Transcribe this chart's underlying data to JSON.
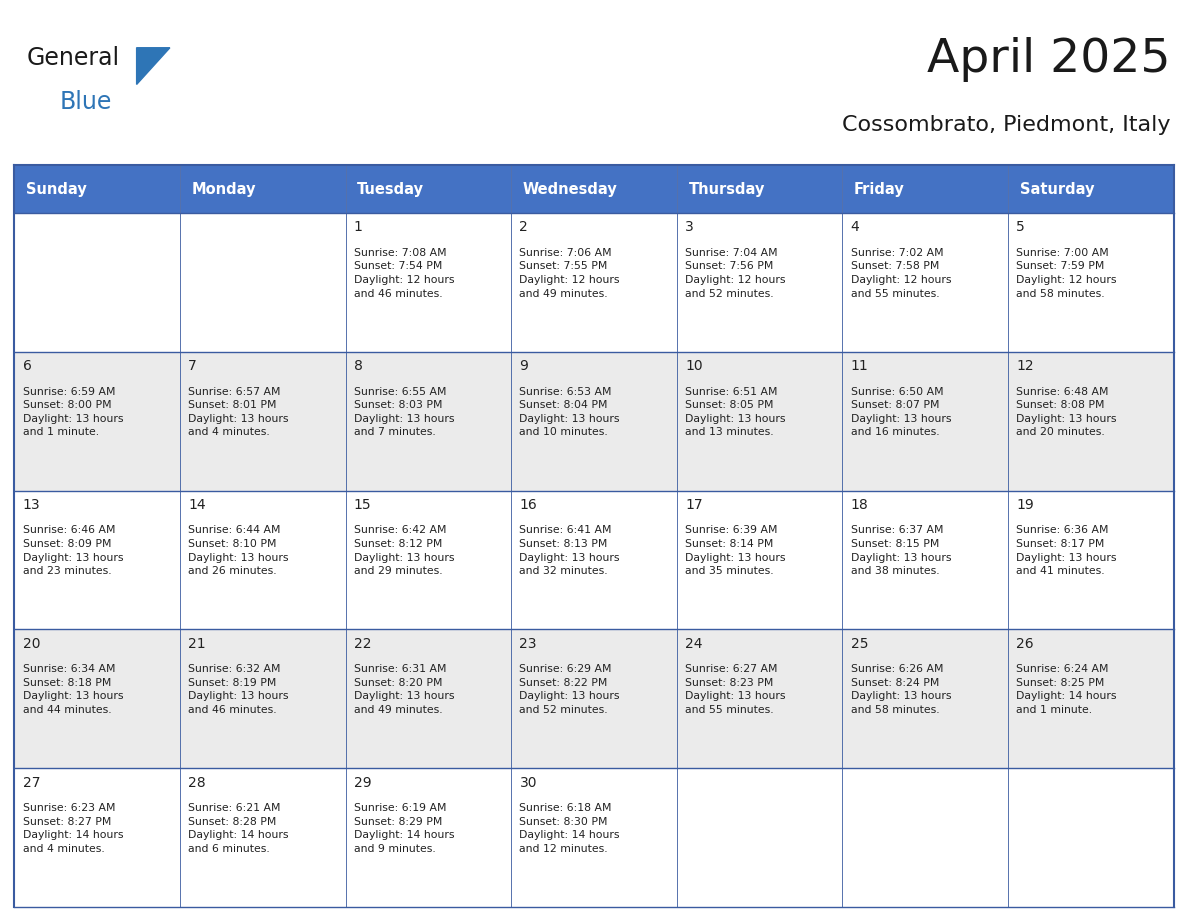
{
  "title": "April 2025",
  "subtitle": "Cossombrato, Piedmont, Italy",
  "header_bg": "#4472C4",
  "header_text_color": "#FFFFFF",
  "header_font_size": 10.5,
  "day_names": [
    "Sunday",
    "Monday",
    "Tuesday",
    "Wednesday",
    "Thursday",
    "Friday",
    "Saturday"
  ],
  "cell_bg_light": "#FFFFFF",
  "cell_bg_gray": "#EBEBEB",
  "grid_line_color": "#3A5BA0",
  "title_fontsize": 34,
  "subtitle_fontsize": 16,
  "cell_text_fontsize": 7.8,
  "day_num_fontsize": 10,
  "logo_general_color": "#1a1a1a",
  "logo_blue_color": "#2E75B6",
  "logo_triangle_color": "#2E75B6",
  "weeks": [
    {
      "bg": "#FFFFFF",
      "days": [
        {
          "day": null,
          "sunrise": null,
          "sunset": null,
          "daylight": null
        },
        {
          "day": null,
          "sunrise": null,
          "sunset": null,
          "daylight": null
        },
        {
          "day": 1,
          "sunrise": "7:08 AM",
          "sunset": "7:54 PM",
          "daylight": "12 hours\nand 46 minutes."
        },
        {
          "day": 2,
          "sunrise": "7:06 AM",
          "sunset": "7:55 PM",
          "daylight": "12 hours\nand 49 minutes."
        },
        {
          "day": 3,
          "sunrise": "7:04 AM",
          "sunset": "7:56 PM",
          "daylight": "12 hours\nand 52 minutes."
        },
        {
          "day": 4,
          "sunrise": "7:02 AM",
          "sunset": "7:58 PM",
          "daylight": "12 hours\nand 55 minutes."
        },
        {
          "day": 5,
          "sunrise": "7:00 AM",
          "sunset": "7:59 PM",
          "daylight": "12 hours\nand 58 minutes."
        }
      ]
    },
    {
      "bg": "#EBEBEB",
      "days": [
        {
          "day": 6,
          "sunrise": "6:59 AM",
          "sunset": "8:00 PM",
          "daylight": "13 hours\nand 1 minute."
        },
        {
          "day": 7,
          "sunrise": "6:57 AM",
          "sunset": "8:01 PM",
          "daylight": "13 hours\nand 4 minutes."
        },
        {
          "day": 8,
          "sunrise": "6:55 AM",
          "sunset": "8:03 PM",
          "daylight": "13 hours\nand 7 minutes."
        },
        {
          "day": 9,
          "sunrise": "6:53 AM",
          "sunset": "8:04 PM",
          "daylight": "13 hours\nand 10 minutes."
        },
        {
          "day": 10,
          "sunrise": "6:51 AM",
          "sunset": "8:05 PM",
          "daylight": "13 hours\nand 13 minutes."
        },
        {
          "day": 11,
          "sunrise": "6:50 AM",
          "sunset": "8:07 PM",
          "daylight": "13 hours\nand 16 minutes."
        },
        {
          "day": 12,
          "sunrise": "6:48 AM",
          "sunset": "8:08 PM",
          "daylight": "13 hours\nand 20 minutes."
        }
      ]
    },
    {
      "bg": "#FFFFFF",
      "days": [
        {
          "day": 13,
          "sunrise": "6:46 AM",
          "sunset": "8:09 PM",
          "daylight": "13 hours\nand 23 minutes."
        },
        {
          "day": 14,
          "sunrise": "6:44 AM",
          "sunset": "8:10 PM",
          "daylight": "13 hours\nand 26 minutes."
        },
        {
          "day": 15,
          "sunrise": "6:42 AM",
          "sunset": "8:12 PM",
          "daylight": "13 hours\nand 29 minutes."
        },
        {
          "day": 16,
          "sunrise": "6:41 AM",
          "sunset": "8:13 PM",
          "daylight": "13 hours\nand 32 minutes."
        },
        {
          "day": 17,
          "sunrise": "6:39 AM",
          "sunset": "8:14 PM",
          "daylight": "13 hours\nand 35 minutes."
        },
        {
          "day": 18,
          "sunrise": "6:37 AM",
          "sunset": "8:15 PM",
          "daylight": "13 hours\nand 38 minutes."
        },
        {
          "day": 19,
          "sunrise": "6:36 AM",
          "sunset": "8:17 PM",
          "daylight": "13 hours\nand 41 minutes."
        }
      ]
    },
    {
      "bg": "#EBEBEB",
      "days": [
        {
          "day": 20,
          "sunrise": "6:34 AM",
          "sunset": "8:18 PM",
          "daylight": "13 hours\nand 44 minutes."
        },
        {
          "day": 21,
          "sunrise": "6:32 AM",
          "sunset": "8:19 PM",
          "daylight": "13 hours\nand 46 minutes."
        },
        {
          "day": 22,
          "sunrise": "6:31 AM",
          "sunset": "8:20 PM",
          "daylight": "13 hours\nand 49 minutes."
        },
        {
          "day": 23,
          "sunrise": "6:29 AM",
          "sunset": "8:22 PM",
          "daylight": "13 hours\nand 52 minutes."
        },
        {
          "day": 24,
          "sunrise": "6:27 AM",
          "sunset": "8:23 PM",
          "daylight": "13 hours\nand 55 minutes."
        },
        {
          "day": 25,
          "sunrise": "6:26 AM",
          "sunset": "8:24 PM",
          "daylight": "13 hours\nand 58 minutes."
        },
        {
          "day": 26,
          "sunrise": "6:24 AM",
          "sunset": "8:25 PM",
          "daylight": "14 hours\nand 1 minute."
        }
      ]
    },
    {
      "bg": "#FFFFFF",
      "days": [
        {
          "day": 27,
          "sunrise": "6:23 AM",
          "sunset": "8:27 PM",
          "daylight": "14 hours\nand 4 minutes."
        },
        {
          "day": 28,
          "sunrise": "6:21 AM",
          "sunset": "8:28 PM",
          "daylight": "14 hours\nand 6 minutes."
        },
        {
          "day": 29,
          "sunrise": "6:19 AM",
          "sunset": "8:29 PM",
          "daylight": "14 hours\nand 9 minutes."
        },
        {
          "day": 30,
          "sunrise": "6:18 AM",
          "sunset": "8:30 PM",
          "daylight": "14 hours\nand 12 minutes."
        },
        {
          "day": null,
          "sunrise": null,
          "sunset": null,
          "daylight": null
        },
        {
          "day": null,
          "sunrise": null,
          "sunset": null,
          "daylight": null
        },
        {
          "day": null,
          "sunrise": null,
          "sunset": null,
          "daylight": null
        }
      ]
    }
  ]
}
